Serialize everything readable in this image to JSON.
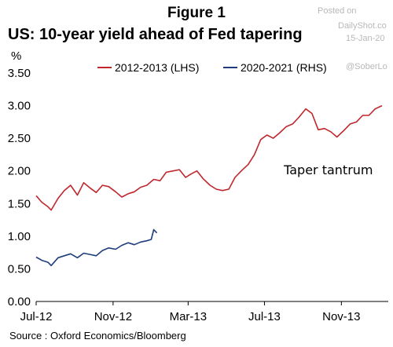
{
  "header": {
    "figure_label": "Figure 1",
    "title": "US: 10-year yield ahead of Fed tapering"
  },
  "watermark": {
    "line1": "Posted on",
    "line2": "DailyShot.co",
    "line3": "15-Jan-20",
    "handle": "@SoberLo"
  },
  "source": "Source : Oxford Economics/Bloomberg",
  "colors": {
    "red": "#c0272d",
    "blue": "#1f3d7a"
  },
  "chart_data": {
    "type": "line",
    "title": "US: 10-year yield ahead of Fed tapering",
    "ylabel": "%",
    "ylim": [
      0,
      3.5
    ],
    "yticks": [
      "0.00",
      "0.50",
      "1.00",
      "1.50",
      "2.00",
      "2.50",
      "3.00",
      "3.50"
    ],
    "ytick_values": [
      0,
      0.5,
      1.0,
      1.5,
      2.0,
      2.5,
      3.0,
      3.5
    ],
    "xlim": [
      "2012-07-01",
      "2014-01-15"
    ],
    "xticks": [
      "Jul-12",
      "Nov-12",
      "Mar-13",
      "Jul-13",
      "Nov-13"
    ],
    "xtick_dates": [
      "2012-07-01",
      "2012-11-01",
      "2013-03-01",
      "2013-07-01",
      "2013-11-01"
    ],
    "legend_position": "top",
    "grid": false,
    "annotations": [
      {
        "text": "Taper tantrum",
        "x": "2013-08-01",
        "y": 1.95
      }
    ],
    "series": [
      {
        "name": "2012-2013 (LHS)",
        "color": "#c0272d",
        "x": [
          "2012-07-01",
          "2012-07-10",
          "2012-07-20",
          "2012-07-25",
          "2012-08-05",
          "2012-08-15",
          "2012-08-25",
          "2012-09-05",
          "2012-09-15",
          "2012-09-25",
          "2012-10-05",
          "2012-10-15",
          "2012-10-25",
          "2012-11-05",
          "2012-11-15",
          "2012-11-25",
          "2012-12-05",
          "2012-12-15",
          "2012-12-25",
          "2013-01-05",
          "2013-01-15",
          "2013-01-25",
          "2013-02-05",
          "2013-02-15",
          "2013-02-25",
          "2013-03-05",
          "2013-03-15",
          "2013-03-25",
          "2013-04-05",
          "2013-04-15",
          "2013-04-25",
          "2013-05-05",
          "2013-05-15",
          "2013-05-25",
          "2013-06-05",
          "2013-06-15",
          "2013-06-25",
          "2013-07-05",
          "2013-07-15",
          "2013-07-25",
          "2013-08-05",
          "2013-08-15",
          "2013-08-25",
          "2013-09-05",
          "2013-09-15",
          "2013-09-25",
          "2013-10-05",
          "2013-10-15",
          "2013-10-25",
          "2013-11-05",
          "2013-11-15",
          "2013-11-25",
          "2013-12-05",
          "2013-12-15",
          "2013-12-25",
          "2014-01-05"
        ],
        "values": [
          1.62,
          1.52,
          1.45,
          1.4,
          1.58,
          1.7,
          1.78,
          1.63,
          1.82,
          1.74,
          1.67,
          1.78,
          1.76,
          1.68,
          1.6,
          1.65,
          1.68,
          1.75,
          1.78,
          1.87,
          1.85,
          1.98,
          2.0,
          2.02,
          1.9,
          1.95,
          2.0,
          1.88,
          1.78,
          1.72,
          1.7,
          1.72,
          1.9,
          2.0,
          2.1,
          2.25,
          2.48,
          2.55,
          2.5,
          2.58,
          2.68,
          2.72,
          2.82,
          2.95,
          2.88,
          2.63,
          2.65,
          2.6,
          2.52,
          2.62,
          2.72,
          2.75,
          2.85,
          2.85,
          2.95,
          3.0
        ]
      },
      {
        "name": "2020-2021 (RHS)",
        "color": "#1f3d7a",
        "x": [
          "2012-07-01",
          "2012-07-10",
          "2012-07-20",
          "2012-07-25",
          "2012-08-05",
          "2012-08-15",
          "2012-08-25",
          "2012-09-05",
          "2012-09-15",
          "2012-09-25",
          "2012-10-05",
          "2012-10-15",
          "2012-10-25",
          "2012-11-05",
          "2012-11-15",
          "2012-11-25",
          "2012-12-05",
          "2012-12-15",
          "2012-12-25",
          "2013-01-01",
          "2013-01-05",
          "2013-01-10"
        ],
        "values": [
          0.68,
          0.63,
          0.6,
          0.55,
          0.67,
          0.7,
          0.73,
          0.67,
          0.74,
          0.72,
          0.7,
          0.78,
          0.82,
          0.8,
          0.86,
          0.9,
          0.87,
          0.91,
          0.93,
          0.95,
          1.1,
          1.05
        ]
      }
    ]
  }
}
